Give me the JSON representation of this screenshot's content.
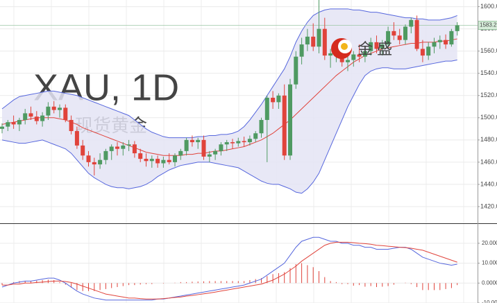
{
  "chart_data": [
    {
      "type": "candlestick",
      "watermark": "XAU, 1D",
      "watermark_subtitle": "现货黄金",
      "logo_text": "金 盛",
      "up_color": "#4f9a62",
      "down_color": "#e0433b",
      "band_color": "#5566dd",
      "band_fill": "#e4e4f4",
      "mid_color": "#e0433b",
      "ylim": [
        1405,
        1606
      ],
      "yticks": [
        {
          "value": 1600,
          "label": "1600.00"
        },
        {
          "value": 1580,
          "label": "1580.00"
        },
        {
          "value": 1560,
          "label": "1560.00"
        },
        {
          "value": 1540,
          "label": "1540.00"
        },
        {
          "value": 1520,
          "label": "1520.00"
        },
        {
          "value": 1500,
          "label": "1500.00"
        },
        {
          "value": 1480,
          "label": "1480.00"
        },
        {
          "value": 1460,
          "label": "1460.00"
        },
        {
          "value": 1440,
          "label": "1440.00"
        },
        {
          "value": 1420,
          "label": "1420.00"
        }
      ],
      "grid": true,
      "last_price": 1583.21,
      "open": [
        1490,
        1492,
        1496,
        1494,
        1498,
        1504,
        1501,
        1497,
        1502,
        1510,
        1507,
        1509,
        1498,
        1488,
        1475,
        1466,
        1460,
        1458,
        1462,
        1470,
        1474,
        1472,
        1475,
        1476,
        1468,
        1463,
        1461,
        1463,
        1459,
        1462,
        1460,
        1466,
        1470,
        1480,
        1478,
        1480,
        1465,
        1467,
        1470,
        1476,
        1478,
        1477,
        1479,
        1478,
        1481,
        1486,
        1498,
        1518,
        1514,
        1520,
        1466,
        1530,
        1555,
        1566,
        1573,
        1564,
        1580,
        1556,
        1558,
        1562,
        1550,
        1552,
        1557,
        1555,
        1560,
        1568,
        1562,
        1566,
        1578,
        1574,
        1570,
        1582,
        1588,
        1562,
        1556,
        1564,
        1568,
        1570,
        1566,
        1578
      ],
      "high": [
        1495,
        1498,
        1502,
        1500,
        1508,
        1510,
        1506,
        1505,
        1514,
        1515,
        1512,
        1512,
        1502,
        1492,
        1480,
        1470,
        1464,
        1468,
        1472,
        1476,
        1478,
        1478,
        1480,
        1479,
        1472,
        1468,
        1466,
        1466,
        1465,
        1468,
        1468,
        1472,
        1482,
        1484,
        1482,
        1484,
        1470,
        1472,
        1478,
        1480,
        1481,
        1482,
        1483,
        1484,
        1488,
        1500,
        1520,
        1524,
        1522,
        1530,
        1535,
        1560,
        1572,
        1580,
        1585,
        1606,
        1590,
        1562,
        1566,
        1566,
        1558,
        1560,
        1566,
        1565,
        1572,
        1574,
        1570,
        1582,
        1586,
        1580,
        1584,
        1590,
        1592,
        1570,
        1568,
        1572,
        1574,
        1575,
        1580,
        1586
      ],
      "low": [
        1486,
        1488,
        1490,
        1488,
        1494,
        1498,
        1494,
        1492,
        1498,
        1504,
        1500,
        1496,
        1485,
        1472,
        1462,
        1456,
        1448,
        1454,
        1458,
        1462,
        1466,
        1466,
        1470,
        1464,
        1460,
        1456,
        1455,
        1455,
        1455,
        1458,
        1456,
        1462,
        1466,
        1474,
        1472,
        1462,
        1460,
        1462,
        1466,
        1470,
        1472,
        1474,
        1474,
        1475,
        1478,
        1482,
        1460,
        1508,
        1508,
        1462,
        1462,
        1526,
        1548,
        1560,
        1560,
        1558,
        1552,
        1545,
        1550,
        1546,
        1542,
        1546,
        1550,
        1550,
        1556,
        1558,
        1556,
        1562,
        1570,
        1566,
        1566,
        1576,
        1560,
        1550,
        1552,
        1558,
        1562,
        1562,
        1564,
        1574
      ],
      "close": [
        1492,
        1496,
        1494,
        1498,
        1504,
        1501,
        1497,
        1502,
        1510,
        1507,
        1509,
        1498,
        1488,
        1475,
        1466,
        1460,
        1458,
        1462,
        1470,
        1474,
        1472,
        1475,
        1476,
        1468,
        1463,
        1461,
        1463,
        1459,
        1462,
        1460,
        1466,
        1470,
        1480,
        1478,
        1480,
        1465,
        1467,
        1470,
        1476,
        1478,
        1477,
        1479,
        1478,
        1481,
        1486,
        1498,
        1518,
        1514,
        1520,
        1466,
        1530,
        1555,
        1566,
        1573,
        1564,
        1580,
        1556,
        1558,
        1562,
        1550,
        1552,
        1557,
        1555,
        1560,
        1568,
        1562,
        1566,
        1578,
        1574,
        1570,
        1582,
        1588,
        1562,
        1556,
        1564,
        1568,
        1570,
        1566,
        1578,
        1583.21
      ],
      "bollinger_upper": [
        1508,
        1512,
        1516,
        1519,
        1520,
        1521,
        1522,
        1523,
        1524,
        1524,
        1523,
        1522,
        1521,
        1520,
        1518,
        1516,
        1514,
        1512,
        1510,
        1508,
        1506,
        1504,
        1502,
        1498,
        1494,
        1490,
        1487,
        1485,
        1483,
        1482,
        1482,
        1482,
        1482,
        1482,
        1483,
        1483,
        1484,
        1484,
        1485,
        1485,
        1486,
        1488,
        1492,
        1498,
        1505,
        1512,
        1520,
        1528,
        1536,
        1544,
        1555,
        1568,
        1578,
        1586,
        1592,
        1595,
        1597,
        1598,
        1598,
        1598,
        1598,
        1597,
        1597,
        1596,
        1595,
        1595,
        1594,
        1593,
        1592,
        1591,
        1590,
        1590,
        1589,
        1589,
        1588,
        1588,
        1588,
        1589,
        1590,
        1592
      ],
      "bollinger_mid": [
        1494,
        1495,
        1496,
        1497,
        1498,
        1499,
        1500,
        1500,
        1500,
        1500,
        1499,
        1498,
        1496,
        1494,
        1491,
        1489,
        1487,
        1485,
        1483,
        1481,
        1479,
        1477,
        1475,
        1473,
        1471,
        1469,
        1468,
        1467,
        1466,
        1466,
        1466,
        1466,
        1467,
        1467,
        1468,
        1468,
        1469,
        1470,
        1470,
        1471,
        1472,
        1473,
        1474,
        1476,
        1478,
        1480,
        1483,
        1486,
        1490,
        1494,
        1498,
        1503,
        1508,
        1513,
        1518,
        1523,
        1528,
        1533,
        1538,
        1542,
        1546,
        1550,
        1553,
        1556,
        1558,
        1560,
        1562,
        1563,
        1564,
        1565,
        1566,
        1567,
        1567,
        1568,
        1568,
        1568,
        1569,
        1569,
        1570,
        1571
      ],
      "bollinger_lower": [
        1480,
        1479,
        1478,
        1477,
        1477,
        1478,
        1479,
        1480,
        1478,
        1476,
        1474,
        1472,
        1468,
        1462,
        1456,
        1450,
        1446,
        1443,
        1440,
        1438,
        1437,
        1437,
        1436,
        1437,
        1438,
        1440,
        1443,
        1447,
        1450,
        1453,
        1455,
        1457,
        1458,
        1459,
        1460,
        1460,
        1460,
        1459,
        1458,
        1457,
        1456,
        1455,
        1452,
        1449,
        1446,
        1443,
        1441,
        1440,
        1440,
        1438,
        1436,
        1433,
        1432,
        1436,
        1442,
        1450,
        1462,
        1474,
        1486,
        1498,
        1510,
        1520,
        1530,
        1538,
        1542,
        1544,
        1545,
        1545,
        1544,
        1544,
        1544,
        1545,
        1546,
        1547,
        1548,
        1549,
        1550,
        1551,
        1551,
        1552
      ]
    },
    {
      "type": "macd",
      "dif_color": "#5566dd",
      "dea_color": "#e0433b",
      "hist_up_color": "#e0433b",
      "hist_down_color": "#e0433b",
      "ylim": [
        -10,
        29.7
      ],
      "yticks": [
        {
          "value": 20,
          "label": "20.0000"
        },
        {
          "value": 10,
          "label": "10.0000"
        },
        {
          "value": 0,
          "label": "0.0000"
        },
        {
          "value": -10,
          "label": "-10.0000"
        }
      ],
      "dif": [
        -2,
        -1,
        0,
        0.5,
        1,
        1,
        1.5,
        2,
        2.5,
        2.5,
        1.5,
        0,
        -2,
        -4,
        -5.5,
        -6.5,
        -7.5,
        -8,
        -8.5,
        -8.5,
        -8.5,
        -8.5,
        -8.5,
        -8.5,
        -8.5,
        -8.5,
        -8.5,
        -8,
        -8,
        -7.5,
        -7,
        -6.5,
        -6,
        -5.5,
        -5,
        -4.5,
        -4,
        -3.5,
        -3,
        -2.5,
        -2,
        -1.5,
        -1,
        0,
        1,
        2,
        4,
        6,
        8,
        10,
        14,
        18,
        21,
        22,
        23,
        23,
        22,
        21,
        21,
        20,
        20,
        19,
        19,
        18,
        18,
        17,
        17,
        17,
        17.5,
        18,
        18,
        17,
        15,
        13,
        12,
        11,
        10,
        9.5,
        9,
        9.5
      ],
      "dea": [
        -1,
        -1,
        -0.5,
        -0.5,
        0,
        0,
        0.3,
        0.5,
        0.8,
        1,
        1,
        0.8,
        0.3,
        -0.5,
        -1.5,
        -2.5,
        -3.5,
        -4.5,
        -5.5,
        -6,
        -6.5,
        -7,
        -7.5,
        -7.5,
        -7.8,
        -8,
        -8,
        -8,
        -7.8,
        -7.5,
        -7.2,
        -7,
        -6.5,
        -6.2,
        -5.8,
        -5.4,
        -5,
        -4.5,
        -4,
        -3.5,
        -3,
        -2.5,
        -2,
        -1.5,
        -1,
        -0.5,
        0.5,
        1.5,
        3,
        4.5,
        6.5,
        8.5,
        11,
        13,
        15,
        17,
        19,
        20,
        20.5,
        20.5,
        20.5,
        20.3,
        20,
        19.8,
        19.5,
        19,
        18.8,
        18.5,
        18.3,
        18,
        17.8,
        17.5,
        17,
        16.5,
        15.5,
        14.5,
        13.5,
        12.5,
        11.5,
        10.5
      ],
      "histogram": [
        -1,
        0,
        0.5,
        1,
        1,
        1,
        1.2,
        1.5,
        1.7,
        1.5,
        0.5,
        -0.8,
        -2.3,
        -3.5,
        -4,
        -4,
        -4,
        -3.5,
        -3,
        -2.5,
        -2,
        -1.5,
        -1,
        -1,
        -0.7,
        -0.5,
        -0.5,
        0,
        -0.2,
        0,
        0.2,
        0.5,
        0.5,
        0.7,
        0.8,
        0.9,
        1,
        1,
        1,
        1,
        1,
        1,
        1,
        1.5,
        2,
        2.5,
        3.5,
        4.5,
        5,
        5.5,
        7.5,
        9.5,
        10,
        9,
        8,
        6,
        3,
        1,
        0.5,
        -0.5,
        -0.5,
        -1.3,
        -1,
        -1.8,
        -1.5,
        -2,
        -1.8,
        -1.5,
        -0.8,
        0,
        0.2,
        -0.5,
        -2,
        -3.5,
        -3.5,
        -3.5,
        -3.5,
        -3,
        -2.5,
        -1
      ]
    }
  ]
}
